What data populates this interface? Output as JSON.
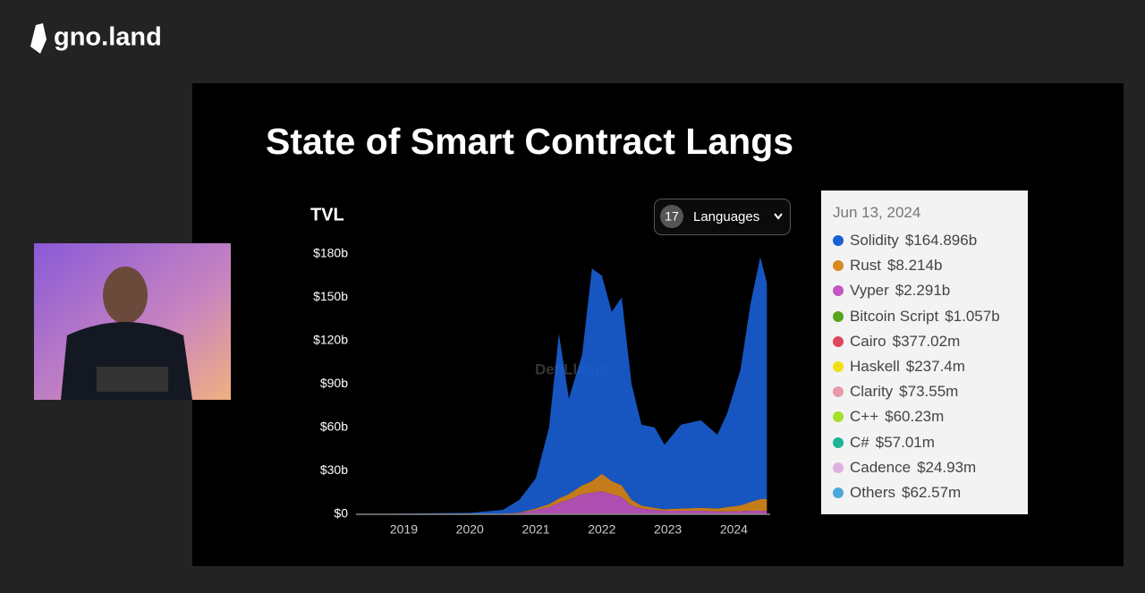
{
  "brand": "gno.land",
  "slide_title": "State of Smart Contract Langs",
  "chart_data": {
    "type": "area",
    "stacked": true,
    "y_label": "TVL",
    "watermark": "DefiLlama",
    "selector": {
      "count": "17",
      "label": "Languages"
    },
    "x": [
      2018.35,
      2019,
      2019.5,
      2020,
      2020.5,
      2020.75,
      2021,
      2021.2,
      2021.35,
      2021.5,
      2021.7,
      2021.85,
      2022.0,
      2022.15,
      2022.3,
      2022.45,
      2022.6,
      2022.8,
      2022.95,
      2023.2,
      2023.5,
      2023.75,
      2023.9,
      2024.1,
      2024.25,
      2024.4,
      2024.5
    ],
    "xlim": [
      2018.33,
      2024.55
    ],
    "xticks": [
      2019,
      2020,
      2021,
      2022,
      2023,
      2024
    ],
    "ylim": [
      0,
      180
    ],
    "yticks": [
      {
        "value": 0,
        "label": "$0"
      },
      {
        "value": 30,
        "label": "$30b"
      },
      {
        "value": 60,
        "label": "$60b"
      },
      {
        "value": 90,
        "label": "$90b"
      },
      {
        "value": 120,
        "label": "$120b"
      },
      {
        "value": 150,
        "label": "$150b"
      },
      {
        "value": 180,
        "label": "$180b"
      }
    ],
    "series": [
      {
        "name": "Solidity",
        "color": "#1a5fd6",
        "values": [
          0,
          0.5,
          0.8,
          1,
          2.5,
          8.8,
          21,
          53,
          114,
          66,
          90,
          147,
          137,
          117,
          130,
          80,
          56,
          55.5,
          44.5,
          58,
          60.5,
          51,
          65,
          93.8,
          136.5,
          167.5,
          149.5
        ]
      },
      {
        "name": "Rust",
        "color": "#d98a1e",
        "values": [
          0,
          0,
          0,
          0,
          0,
          0.2,
          1,
          2,
          3,
          4,
          6,
          8,
          12,
          9,
          8,
          4,
          2,
          1.5,
          1,
          1.5,
          2,
          2,
          3,
          4,
          6,
          8,
          8.2
        ]
      },
      {
        "name": "Vyper",
        "color": "#c156c4",
        "values": [
          0,
          0,
          0,
          0,
          0.5,
          1,
          3,
          5,
          8,
          10,
          14,
          15,
          16,
          14,
          12,
          6,
          4,
          3,
          2.5,
          2.5,
          2.5,
          2,
          2,
          2.2,
          2.5,
          2.5,
          2.3
        ]
      },
      {
        "name": "Bitcoin Script",
        "color": "#5aa31c"
      },
      {
        "name": "Cairo",
        "color": "#e0475c"
      },
      {
        "name": "Haskell",
        "color": "#f0e012"
      },
      {
        "name": "Clarity",
        "color": "#e89aa8"
      },
      {
        "name": "C++",
        "color": "#a6e02a"
      },
      {
        "name": "C#",
        "color": "#1fb39a"
      },
      {
        "name": "Cadence",
        "color": "#e0b0e0"
      },
      {
        "name": "Others",
        "color": "#4aa8d8"
      }
    ],
    "tooltip": {
      "title": "Jun 13, 2024",
      "values": [
        164.896,
        8.214,
        2.291,
        1.057,
        0.37702,
        0.2374,
        0.07355,
        0.06023,
        0.05701,
        0.02493,
        0.06257
      ],
      "value_labels": [
        "$164.896b",
        "$8.214b",
        "$2.291b",
        "$1.057b",
        "$377.02m",
        "$237.4m",
        "$73.55m",
        "$60.23m",
        "$57.01m",
        "$24.93m",
        "$62.57m"
      ]
    }
  }
}
